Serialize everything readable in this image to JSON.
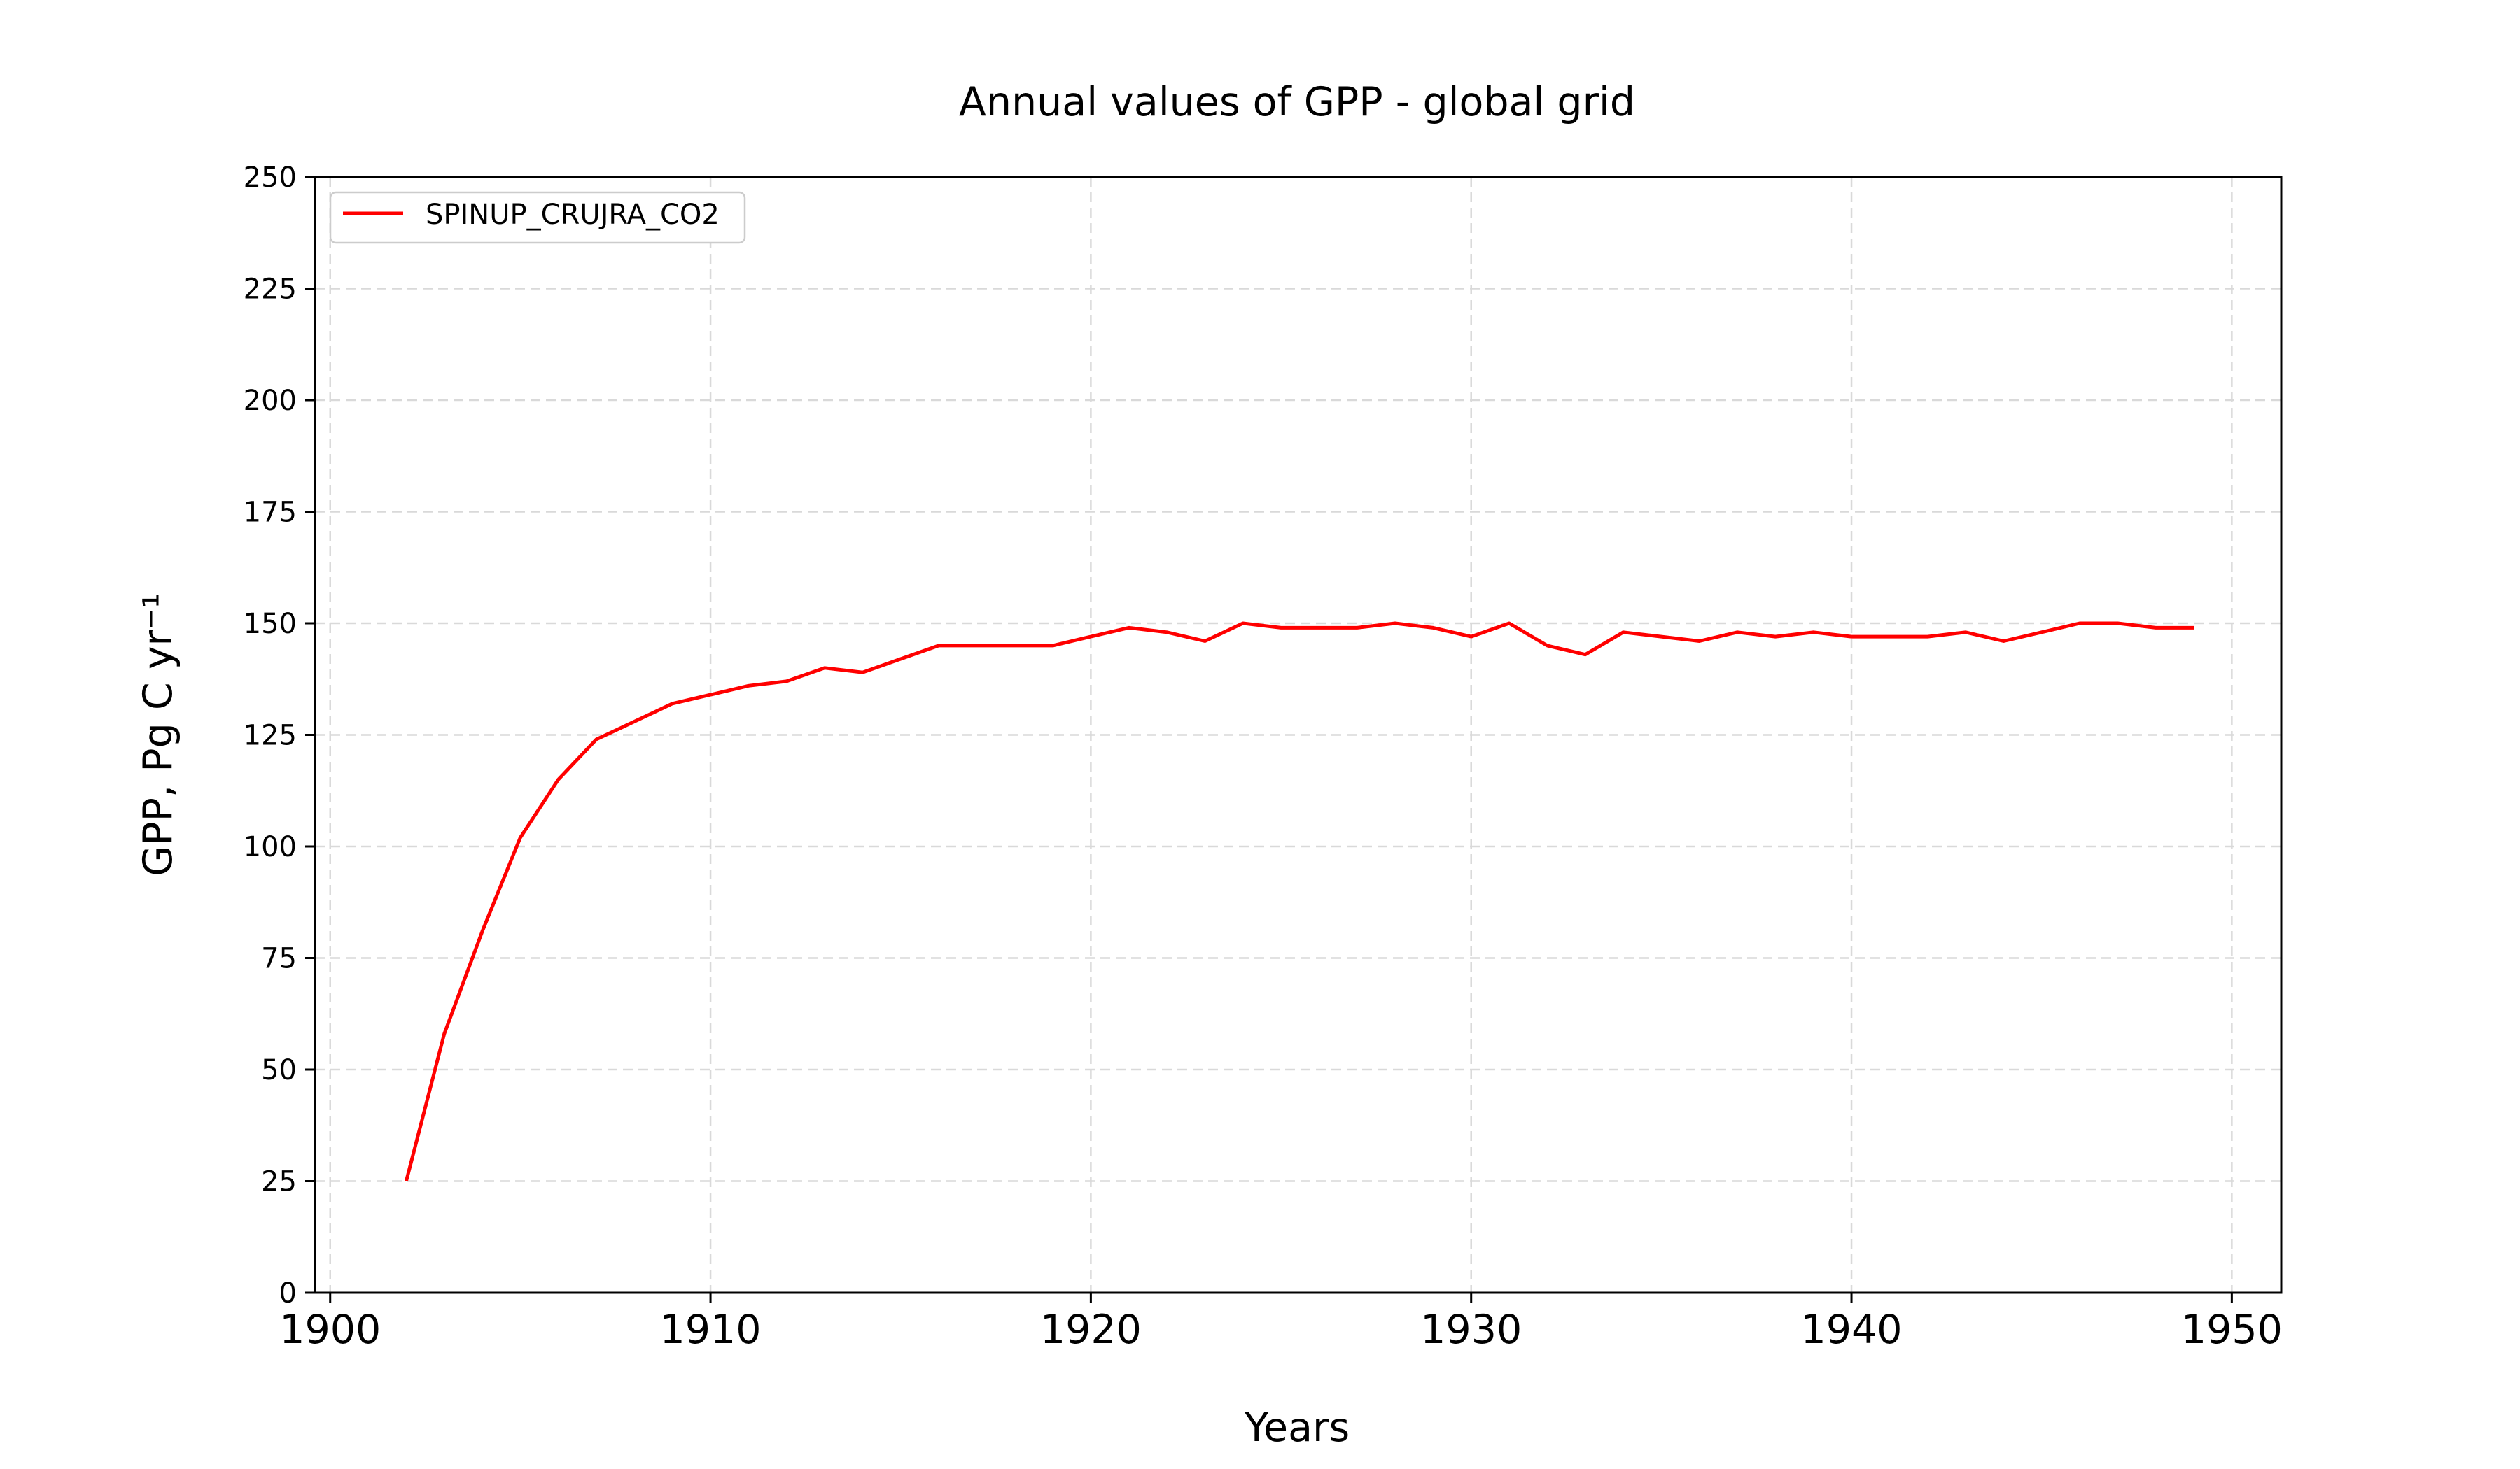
{
  "chart_data": {
    "type": "line",
    "title": "Annual values of GPP - global grid",
    "xlabel": "Years",
    "ylabel": "GPP, Pg C yr⁻¹",
    "xlim": [
      1899.6,
      1951.3
    ],
    "ylim": [
      0,
      250
    ],
    "xticks": [
      1900,
      1910,
      1920,
      1930,
      1940,
      1950
    ],
    "yticks": [
      0,
      25,
      50,
      75,
      100,
      125,
      150,
      175,
      200,
      225,
      250
    ],
    "grid": true,
    "legend_position": "top-left",
    "colors": {
      "series": "#ff0000",
      "grid": "#d9d9d9",
      "axes": "#000000"
    },
    "series": [
      {
        "name": "SPINUP_CRUJRA_CO2",
        "x": [
          1902,
          1903,
          1904,
          1905,
          1906,
          1907,
          1908,
          1909,
          1910,
          1911,
          1912,
          1913,
          1914,
          1915,
          1916,
          1917,
          1918,
          1919,
          1920,
          1921,
          1922,
          1923,
          1924,
          1925,
          1926,
          1927,
          1928,
          1929,
          1930,
          1931,
          1932,
          1933,
          1934,
          1935,
          1936,
          1937,
          1938,
          1939,
          1940,
          1941,
          1942,
          1943,
          1944,
          1945,
          1946,
          1947,
          1948,
          1949
        ],
        "y": [
          25,
          58,
          81,
          102,
          115,
          124,
          128,
          132,
          134,
          136,
          137,
          140,
          139,
          142,
          145,
          145,
          145,
          145,
          147,
          149,
          148,
          146,
          150,
          149,
          149,
          149,
          150,
          149,
          147,
          150,
          145,
          143,
          148,
          147,
          146,
          148,
          147,
          148,
          147,
          147,
          147,
          148,
          146,
          148,
          150,
          150,
          149,
          149
        ]
      }
    ]
  }
}
